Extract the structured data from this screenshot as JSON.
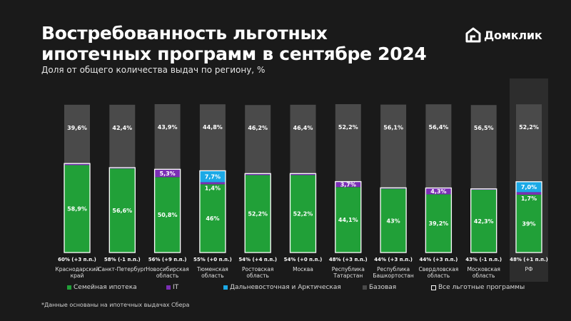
{
  "header": {
    "title": "Востребованность льготных ипотечных программ в сентябре 2024",
    "subtitle": "Доля от общего количества выдач по региону, %"
  },
  "logo": {
    "text": "Домклик",
    "icon": "house-logo-icon"
  },
  "footnote": "*Данные основаны на ипотечных выдачах Сбера",
  "colors": {
    "family": "#21A038",
    "it": "#7B2FB5",
    "fareast": "#1BA9E6",
    "base": "#4a4a4a",
    "background": "#1a1a1a",
    "highlight": "#2d2d2d"
  },
  "legend": [
    {
      "key": "family",
      "label": "Семейная ипотека",
      "color": "#21A038"
    },
    {
      "key": "it",
      "label": "IT",
      "color": "#7B2FB5"
    },
    {
      "key": "fareast",
      "label": "Дальневосточная и Арктическая",
      "color": "#1BA9E6"
    },
    {
      "key": "base",
      "label": "Базовая",
      "color": "#4a4a4a"
    },
    {
      "key": "all",
      "label": "Все льготные программы",
      "color": "#ffffff"
    }
  ],
  "chart_data": {
    "type": "bar",
    "stacked": true,
    "ylim": [
      0,
      100
    ],
    "categories": [
      {
        "name": [
          "Краснодарский",
          "край"
        ],
        "total": "60% (+3 п.п.)"
      },
      {
        "name": [
          "Санкт-Петербург"
        ],
        "total": "58% (-1 п.п.)"
      },
      {
        "name": [
          "Новосибирская",
          "область"
        ],
        "total": "56% (+9 п.п.)"
      },
      {
        "name": [
          "Тюменская",
          "область"
        ],
        "total": "55% (+0 п.п.)"
      },
      {
        "name": [
          "Ростовская",
          "область"
        ],
        "total": "54% (+4 п.п.)"
      },
      {
        "name": [
          "Москва"
        ],
        "total": "54% (+0 п.п.)"
      },
      {
        "name": [
          "Республика",
          "Татарстан"
        ],
        "total": "48% (+3 п.п.)"
      },
      {
        "name": [
          "Республика",
          "Башкортостан"
        ],
        "total": "44% (+3 п.п.)"
      },
      {
        "name": [
          "Свердловская",
          "область"
        ],
        "total": "44% (+3 п.п.)"
      },
      {
        "name": [
          "Московская",
          "область"
        ],
        "total": "43% (-1 п.п.)"
      },
      {
        "name": [
          "РФ"
        ],
        "total": "48% (+1 п.п.)",
        "highlight": true
      }
    ],
    "series": [
      {
        "key": "family",
        "values": [
          58.9,
          56.6,
          50.8,
          46,
          52.2,
          52.2,
          44.1,
          43,
          39.2,
          42.3,
          39
        ],
        "labels": [
          "58,9%",
          "56,6%",
          "50,8%",
          "46%",
          "52,2%",
          "52,2%",
          "44,1%",
          "43%",
          "39,2%",
          "42,3%",
          "39%"
        ]
      },
      {
        "key": "it",
        "values": [
          1.1,
          0.6,
          5.3,
          1.4,
          1.0,
          1.0,
          3.7,
          0.6,
          4.3,
          0.6,
          1.7
        ],
        "labels": [
          "1,1%",
          "",
          "5,3%",
          "1,4%",
          "",
          "1,0%",
          "3,7%",
          "",
          "4,3%",
          "",
          "1,7%"
        ]
      },
      {
        "key": "fareast",
        "values": [
          0,
          0,
          0,
          7.7,
          0,
          0,
          0,
          0,
          0,
          0,
          7.0
        ],
        "labels": [
          "",
          "",
          "",
          "7,7%",
          "",
          "",
          "",
          "",
          "",
          "",
          "7,0%"
        ]
      },
      {
        "key": "base",
        "values": [
          39.6,
          42.4,
          43.9,
          44.8,
          46.2,
          46.4,
          52.2,
          56.1,
          56.4,
          56.5,
          52.2
        ],
        "labels": [
          "39,6%",
          "42,4%",
          "43,9%",
          "44,8%",
          "46,2%",
          "46,4%",
          "52,2%",
          "56,1%",
          "56,4%",
          "56,5%",
          "52,2%"
        ]
      }
    ]
  }
}
